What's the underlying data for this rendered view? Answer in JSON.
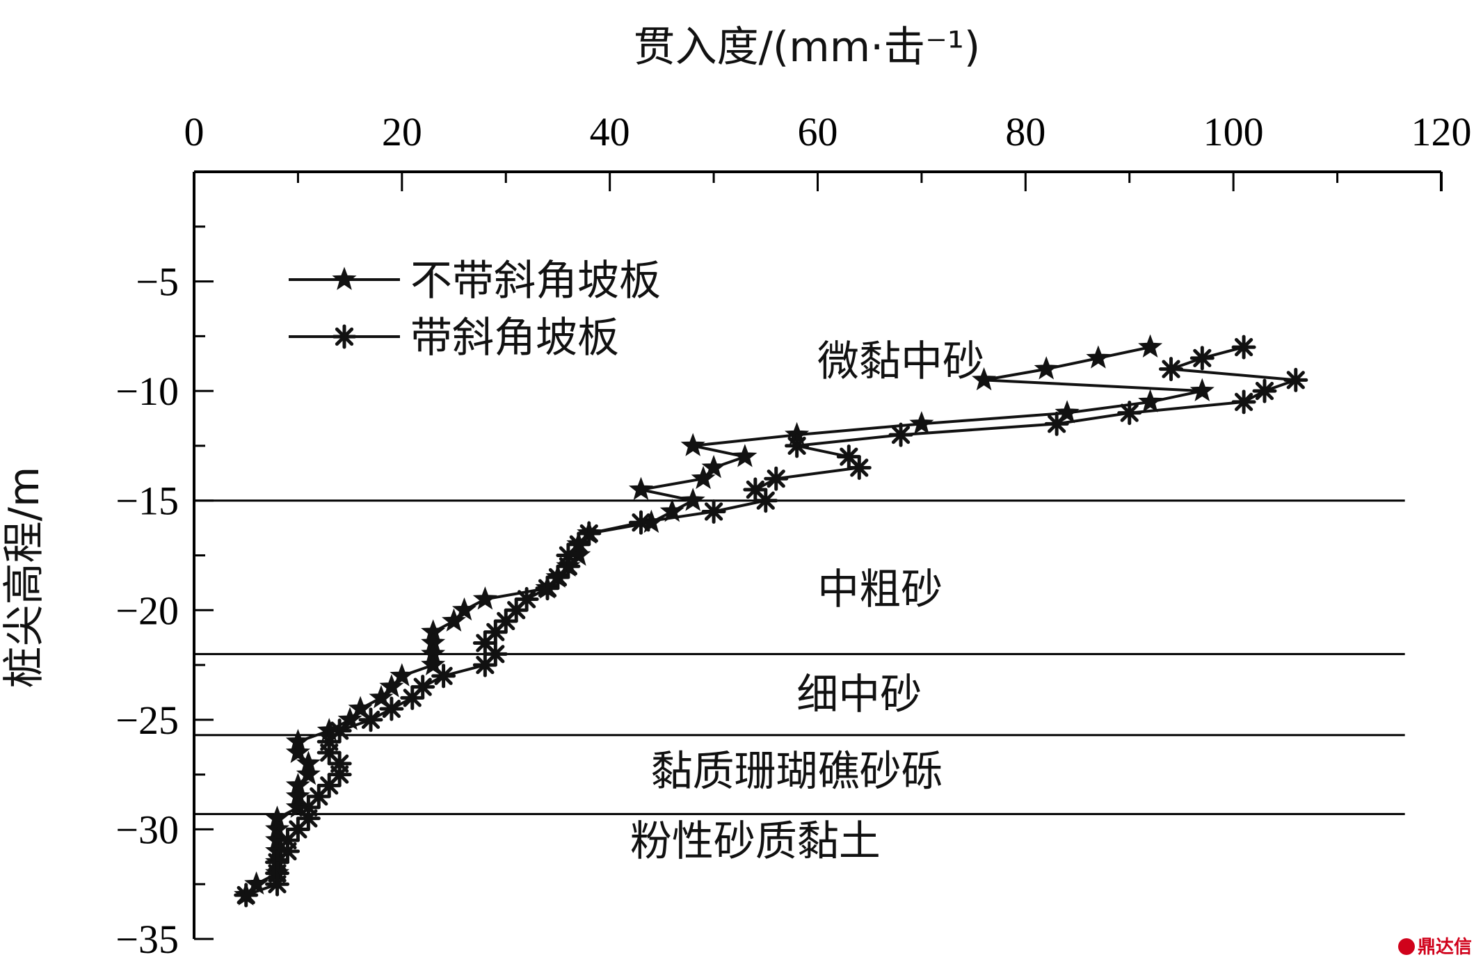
{
  "chart_data": {
    "type": "line",
    "title": "",
    "xlabel": "贯入度/(mm·击⁻¹)",
    "ylabel": "桩尖高程/m",
    "x_axis_position": "top",
    "xlim": [
      0,
      120
    ],
    "ylim": [
      -35,
      0
    ],
    "x_ticks": [
      "0",
      "20",
      "40",
      "60",
      "80",
      "100",
      "120"
    ],
    "y_ticks": [
      "−5",
      "−10",
      "−15",
      "−20",
      "−25",
      "−30",
      "−35"
    ],
    "grid": false,
    "legend_position": "top-left",
    "series": [
      {
        "name": "不带斜角坡板",
        "marker": "star",
        "color": "#111111",
        "points": [
          [
            92,
            -8
          ],
          [
            87,
            -8.5
          ],
          [
            82,
            -9
          ],
          [
            76,
            -9.5
          ],
          [
            97,
            -10
          ],
          [
            92,
            -10.5
          ],
          [
            84,
            -11
          ],
          [
            70,
            -11.5
          ],
          [
            58,
            -12
          ],
          [
            48,
            -12.5
          ],
          [
            53,
            -13
          ],
          [
            50,
            -13.5
          ],
          [
            49,
            -14
          ],
          [
            43,
            -14.5
          ],
          [
            48,
            -15
          ],
          [
            46,
            -15.5
          ],
          [
            44,
            -16
          ],
          [
            38,
            -16.5
          ],
          [
            37,
            -17
          ],
          [
            37,
            -17.5
          ],
          [
            36,
            -18
          ],
          [
            35,
            -18.5
          ],
          [
            34,
            -19
          ],
          [
            28,
            -19.5
          ],
          [
            26,
            -20
          ],
          [
            25,
            -20.5
          ],
          [
            23,
            -21
          ],
          [
            23,
            -21.5
          ],
          [
            23,
            -22
          ],
          [
            23,
            -22.5
          ],
          [
            20,
            -23
          ],
          [
            19,
            -23.5
          ],
          [
            18,
            -24
          ],
          [
            16,
            -24.5
          ],
          [
            15,
            -25
          ],
          [
            13,
            -25.5
          ],
          [
            10,
            -26
          ],
          [
            10,
            -26.5
          ],
          [
            11,
            -27
          ],
          [
            11,
            -27.5
          ],
          [
            10,
            -28
          ],
          [
            10,
            -28.5
          ],
          [
            10,
            -29
          ],
          [
            8,
            -29.5
          ],
          [
            8,
            -30
          ],
          [
            8,
            -30.5
          ],
          [
            8,
            -31
          ],
          [
            8,
            -31.5
          ],
          [
            8,
            -32
          ],
          [
            6,
            -32.5
          ],
          [
            5,
            -33
          ]
        ]
      },
      {
        "name": "带斜角坡板",
        "marker": "asterisk",
        "color": "#111111",
        "points": [
          [
            101,
            -8
          ],
          [
            97,
            -8.5
          ],
          [
            94,
            -9
          ],
          [
            106,
            -9.5
          ],
          [
            103,
            -10
          ],
          [
            101,
            -10.5
          ],
          [
            90,
            -11
          ],
          [
            83,
            -11.5
          ],
          [
            68,
            -12
          ],
          [
            58,
            -12.5
          ],
          [
            63,
            -13
          ],
          [
            64,
            -13.5
          ],
          [
            56,
            -14
          ],
          [
            54,
            -14.5
          ],
          [
            55,
            -15
          ],
          [
            50,
            -15.5
          ],
          [
            43,
            -16
          ],
          [
            38,
            -16.5
          ],
          [
            37,
            -17
          ],
          [
            36,
            -17.5
          ],
          [
            36,
            -18
          ],
          [
            35,
            -18.5
          ],
          [
            34,
            -19
          ],
          [
            32,
            -19.5
          ],
          [
            31,
            -20
          ],
          [
            30,
            -20.5
          ],
          [
            29,
            -21
          ],
          [
            28,
            -21.5
          ],
          [
            29,
            -22
          ],
          [
            28,
            -22.5
          ],
          [
            24,
            -23
          ],
          [
            22,
            -23.5
          ],
          [
            21,
            -24
          ],
          [
            19,
            -24.5
          ],
          [
            17,
            -25
          ],
          [
            14,
            -25.5
          ],
          [
            13,
            -26
          ],
          [
            13,
            -26.5
          ],
          [
            14,
            -27
          ],
          [
            14,
            -27.5
          ],
          [
            13,
            -28
          ],
          [
            12,
            -28.5
          ],
          [
            11,
            -29
          ],
          [
            11,
            -29.5
          ],
          [
            10,
            -30
          ],
          [
            9,
            -30.5
          ],
          [
            9,
            -31
          ],
          [
            8,
            -31.5
          ],
          [
            8,
            -32
          ],
          [
            8,
            -32.5
          ],
          [
            5,
            -33
          ]
        ]
      }
    ],
    "layer_boundaries": [
      -15,
      -22,
      -25.7,
      -29.3
    ],
    "layer_labels": [
      {
        "text": "微黏中砂",
        "x": 68,
        "y": -9.3
      },
      {
        "text": "中粗砂",
        "x": 66,
        "y": -19.7
      },
      {
        "text": "细中砂",
        "x": 64,
        "y": -24.5
      },
      {
        "text": "黏质珊瑚礁砂砾",
        "x": 58,
        "y": -28.0
      },
      {
        "text": "粉性砂质黏土",
        "x": 54,
        "y": -31.2
      }
    ]
  },
  "watermark": "鼎达信"
}
